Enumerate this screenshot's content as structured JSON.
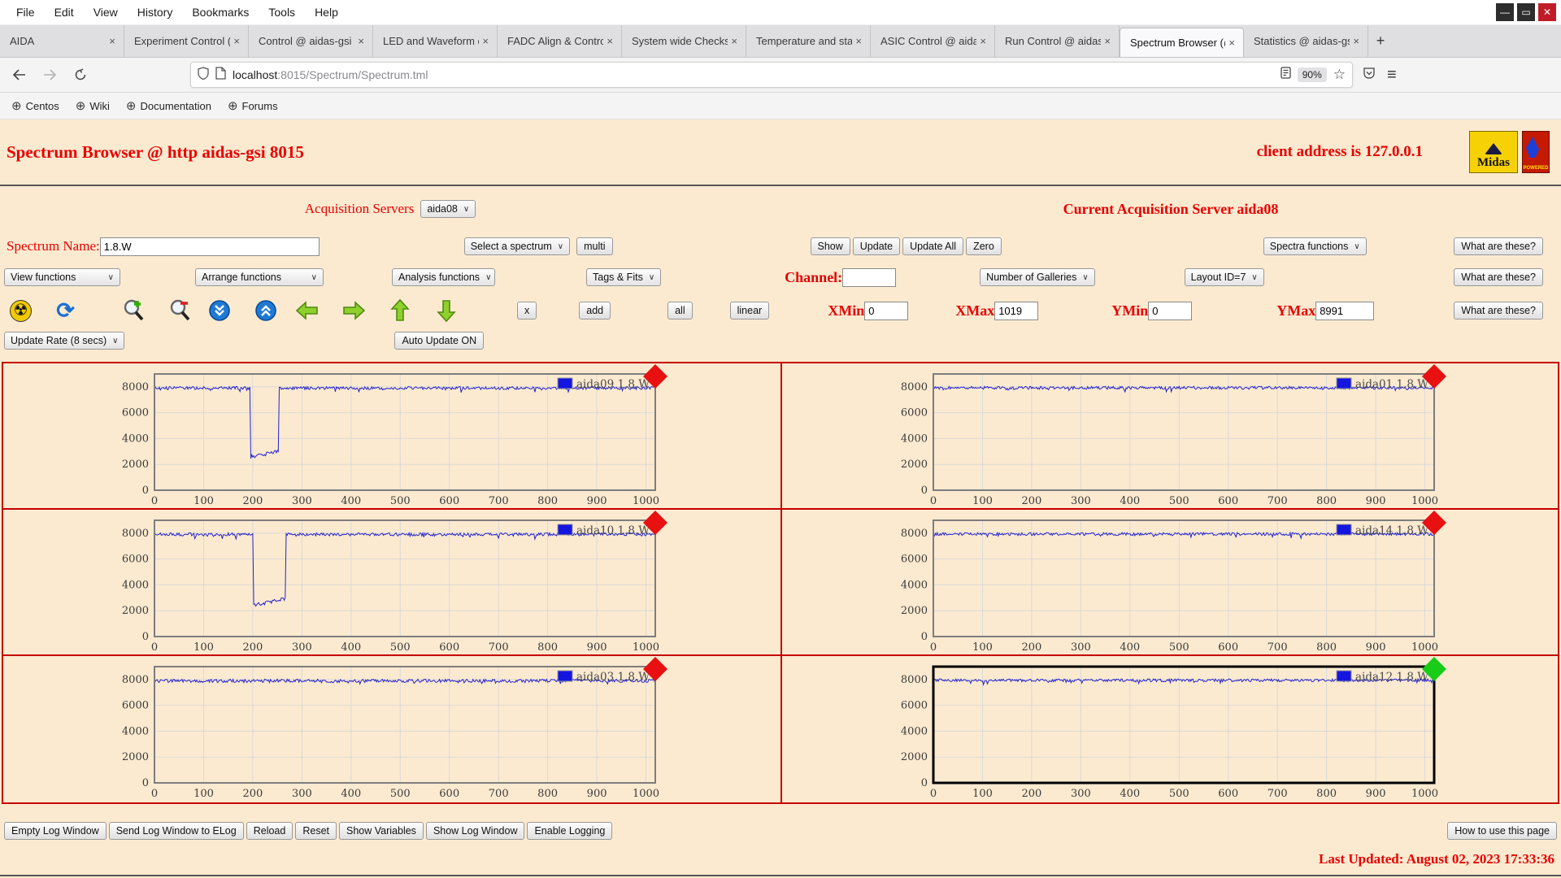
{
  "icons": {
    "chevron": "∨",
    "tab_close": "×",
    "new_tab": "+",
    "minimize": "—",
    "maximize": "▭",
    "close": "✕",
    "hamburger": "≡",
    "star": "☆",
    "globe": "⊕",
    "radioactive": "☢",
    "refresh": "⟳"
  },
  "window": {
    "menu_items": [
      "File",
      "Edit",
      "View",
      "History",
      "Bookmarks",
      "Tools",
      "Help"
    ]
  },
  "tabbar": {
    "tabs": [
      {
        "label": "AIDA"
      },
      {
        "label": "Experiment Control (c"
      },
      {
        "label": "Control @ aidas-gsi"
      },
      {
        "label": "LED and Waveform c"
      },
      {
        "label": "FADC Align & Contro"
      },
      {
        "label": "System wide Checks"
      },
      {
        "label": "Temperature and sta"
      },
      {
        "label": "ASIC Control @ aida"
      },
      {
        "label": "Run Control @ aidas"
      },
      {
        "label": "Spectrum Browser (@"
      },
      {
        "label": "Statistics @ aidas-gsi"
      }
    ]
  },
  "navbar": {
    "url_host": "localhost",
    "url_rest": ":8015/Spectrum/Spectrum.tml",
    "zoom_badge": "90%"
  },
  "bookmarks": [
    {
      "label": "Centos"
    },
    {
      "label": "Wiki"
    },
    {
      "label": "Documentation"
    },
    {
      "label": "Forums"
    }
  ],
  "header": {
    "title": "Spectrum Browser @ http aidas-gsi 8015",
    "client_address": "client address is 127.0.0.1",
    "midas_logo_text": "Midas",
    "powered_logo_text": "POWERED"
  },
  "acquisition": {
    "servers_label": "Acquisition Servers",
    "server_value": "aida08",
    "current_label": "Current Acquisition Server aida08"
  },
  "controls": {
    "spectrum_name_label": "Spectrum Name:",
    "spectrum_name_value": "1.8.W",
    "select_spectrum": "Select a spectrum",
    "multi": "multi",
    "show": "Show",
    "update": "Update",
    "update_all": "Update All",
    "zero": "Zero",
    "spectra_functions": "Spectra functions",
    "what_are_these": "What are these?",
    "view_functions": "View functions",
    "arrange_functions": "Arrange functions",
    "analysis_functions": "Analysis functions",
    "tags_fits": "Tags & Fits",
    "channel_label": "Channel:",
    "channel_value": "",
    "number_of_galleries": "Number of Galleries",
    "layout_id": "Layout ID=7",
    "x_btn": "x",
    "add_btn": "add",
    "all_btn": "all",
    "linear_btn": "linear",
    "xmin_label": "XMin",
    "xmin_value": "0",
    "xmax_label": "XMax",
    "xmax_value": "1019",
    "ymin_label": "YMin",
    "ymin_value": "0",
    "ymax_label": "YMax",
    "ymax_value": "8991",
    "update_rate": "Update Rate (8 secs)",
    "auto_update": "Auto Update ON"
  },
  "footer": {
    "buttons": [
      {
        "label": "Empty Log Window"
      },
      {
        "label": "Send Log Window to ELog"
      },
      {
        "label": "Reload"
      },
      {
        "label": "Reset"
      },
      {
        "label": "Show Variables"
      },
      {
        "label": "Show Log Window"
      },
      {
        "label": "Enable Logging"
      }
    ],
    "help_button": "How to use this page",
    "last_updated": "Last Updated: August 02, 2023 17:33:36"
  },
  "chart_data": {
    "type": "line",
    "x_ticks": [
      0,
      100,
      200,
      300,
      400,
      500,
      600,
      700,
      800,
      900,
      1000
    ],
    "y_ticks": [
      0,
      2000,
      4000,
      6000,
      8000
    ],
    "x_range": [
      0,
      1019
    ],
    "y_range": [
      0,
      8991
    ],
    "grid": true,
    "line_color": "#2222cc",
    "legend_square_color": "#1515e0",
    "plots": [
      {
        "legend": "aida09 1.8.W",
        "baseline": 7900,
        "noise": 230,
        "dip": {
          "start": 195,
          "end": 253,
          "bottom": 2580,
          "rise": 430
        },
        "marker": "#e81010",
        "selected": false
      },
      {
        "legend": "aida01 1.8.W",
        "baseline": 7920,
        "noise": 220,
        "dip": null,
        "marker": "#e81010",
        "selected": false
      },
      {
        "legend": "aida10 1.8.W",
        "baseline": 7900,
        "noise": 240,
        "dip": {
          "start": 201,
          "end": 267,
          "bottom": 2420,
          "rise": 520
        },
        "marker": "#e81010",
        "selected": false
      },
      {
        "legend": "aida14 1.8.W",
        "baseline": 7930,
        "noise": 220,
        "dip": null,
        "marker": "#e81010",
        "selected": false
      },
      {
        "legend": "aida03 1.8.W",
        "baseline": 7890,
        "noise": 260,
        "dip": null,
        "marker": "#e81010",
        "selected": false
      },
      {
        "legend": "aida12 1.8.W",
        "baseline": 7930,
        "noise": 220,
        "dip": null,
        "marker": "#18cc18",
        "selected": true
      }
    ]
  }
}
